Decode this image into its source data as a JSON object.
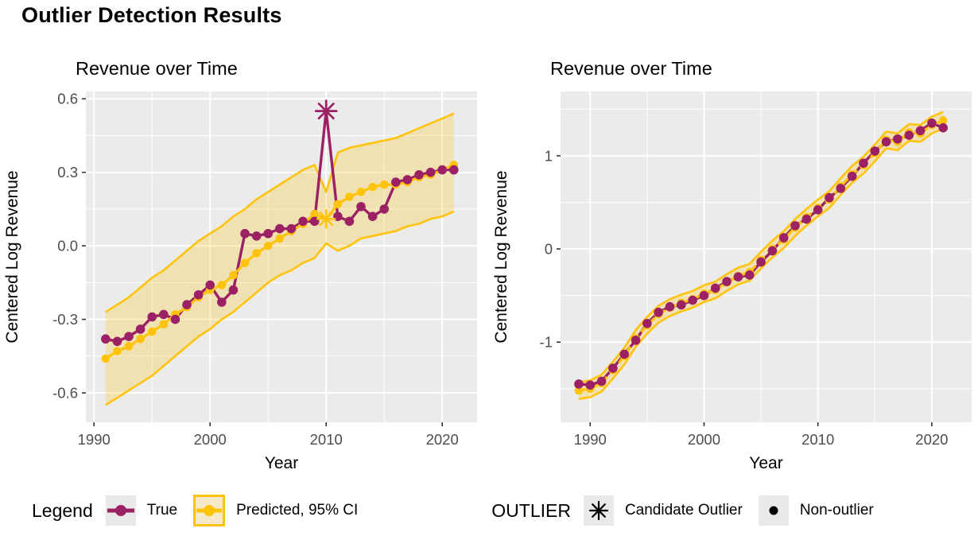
{
  "page": {
    "title": "Outlier Detection Results"
  },
  "colors": {
    "true_series": "#9c2064",
    "predicted_series": "#ffc30b",
    "ci_fill": "rgba(255,195,11,0.25)",
    "ci_key_fill": "#f5e9c9",
    "panel_background": "#ebebeb",
    "gridline": "#ffffff",
    "tick_label": "#4d4d4d",
    "tick_mark": "#333333",
    "axis_title": "#000000",
    "outlier_marker": "#000000"
  },
  "legend": {
    "series_group": {
      "title": "Legend",
      "items": [
        {
          "label": "True",
          "marker": "line-dot",
          "color": "#9c2064"
        },
        {
          "label": "Predicted, 95% CI",
          "marker": "line-dot-ribbon",
          "color": "#ffc30b"
        }
      ]
    },
    "outlier_group": {
      "title": "OUTLIER",
      "items": [
        {
          "label": "Candidate Outlier",
          "marker": "asterisk",
          "color": "#000000"
        },
        {
          "label": "Non-outlier",
          "marker": "dot",
          "color": "#000000"
        }
      ]
    }
  },
  "chart_data": [
    {
      "type": "line",
      "title": "Revenue over Time",
      "xlabel": "Year",
      "ylabel": "Centered Log Revenue",
      "legend_position": "bottom",
      "grid": true,
      "xlim": [
        1989.3,
        2023
      ],
      "ylim": [
        -0.72,
        0.63
      ],
      "x_ticks": [
        1990,
        2000,
        2010,
        2020
      ],
      "x_tick_labels": [
        "1990",
        "2000",
        "2010",
        "2020"
      ],
      "x_minor": [
        1995,
        2005,
        2015
      ],
      "y_ticks": [
        0.6,
        0.3,
        0.0,
        -0.3,
        -0.6
      ],
      "y_tick_labels": [
        "0.6",
        "0.3",
        "0.0",
        "-0.3",
        "-0.6"
      ],
      "y_minor": [
        0.45,
        0.15,
        -0.15,
        -0.45
      ],
      "x": [
        1991,
        1992,
        1993,
        1994,
        1995,
        1996,
        1997,
        1998,
        1999,
        2000,
        2001,
        2002,
        2003,
        2004,
        2005,
        2006,
        2007,
        2008,
        2009,
        2010,
        2011,
        2012,
        2013,
        2014,
        2015,
        2016,
        2017,
        2018,
        2019,
        2020,
        2021
      ],
      "series": [
        {
          "name": "True",
          "values": [
            -0.38,
            -0.39,
            -0.37,
            -0.34,
            -0.29,
            -0.28,
            -0.3,
            -0.24,
            -0.2,
            -0.16,
            -0.23,
            -0.18,
            0.05,
            0.04,
            0.05,
            0.07,
            0.07,
            0.1,
            0.1,
            0.55,
            0.12,
            0.1,
            0.16,
            0.12,
            0.15,
            0.26,
            0.27,
            0.29,
            0.3,
            0.31,
            0.31
          ]
        },
        {
          "name": "Predicted, 95% CI",
          "values": [
            -0.46,
            -0.43,
            -0.41,
            -0.38,
            -0.35,
            -0.32,
            -0.28,
            -0.25,
            -0.21,
            -0.18,
            -0.16,
            -0.12,
            -0.07,
            -0.03,
            0.0,
            0.03,
            0.06,
            0.09,
            0.13,
            0.11,
            0.17,
            0.2,
            0.22,
            0.24,
            0.25,
            0.25,
            0.26,
            0.28,
            0.29,
            0.31,
            0.33
          ]
        },
        {
          "name": "CI upper",
          "values": [
            -0.27,
            -0.24,
            -0.21,
            -0.17,
            -0.13,
            -0.1,
            -0.06,
            -0.02,
            0.02,
            0.05,
            0.08,
            0.12,
            0.15,
            0.19,
            0.22,
            0.25,
            0.28,
            0.31,
            0.33,
            0.22,
            0.38,
            0.4,
            0.41,
            0.42,
            0.43,
            0.44,
            0.46,
            0.48,
            0.5,
            0.52,
            0.54
          ]
        },
        {
          "name": "CI lower",
          "values": [
            -0.65,
            -0.62,
            -0.59,
            -0.56,
            -0.53,
            -0.49,
            -0.45,
            -0.41,
            -0.37,
            -0.34,
            -0.3,
            -0.27,
            -0.23,
            -0.19,
            -0.15,
            -0.12,
            -0.1,
            -0.07,
            -0.05,
            0.01,
            -0.02,
            0.0,
            0.03,
            0.04,
            0.05,
            0.06,
            0.08,
            0.09,
            0.11,
            0.12,
            0.14
          ]
        }
      ],
      "outlier_year": 2010,
      "outlier_true_value": 0.55,
      "outlier_predicted_value": 0.11,
      "predicted_line_dashed": false
    },
    {
      "type": "line",
      "title": "Revenue over Time",
      "xlabel": "Year",
      "ylabel": "Centered Log Revenue",
      "legend_position": "bottom",
      "grid": true,
      "xlim": [
        1987.4,
        2023.5
      ],
      "ylim": [
        -1.86,
        1.69
      ],
      "x_ticks": [
        1990,
        2000,
        2010,
        2020
      ],
      "x_tick_labels": [
        "1990",
        "2000",
        "2010",
        "2020"
      ],
      "x_minor": [
        1995,
        2005,
        2015
      ],
      "y_ticks": [
        1,
        0,
        -1
      ],
      "y_tick_labels": [
        "1",
        "0",
        "-1"
      ],
      "y_minor": [
        1.5,
        0.5,
        -0.5,
        -1.5
      ],
      "x": [
        1989,
        1990,
        1991,
        1992,
        1993,
        1994,
        1995,
        1996,
        1997,
        1998,
        1999,
        2000,
        2001,
        2002,
        2003,
        2004,
        2005,
        2006,
        2007,
        2008,
        2009,
        2010,
        2011,
        2012,
        2013,
        2014,
        2015,
        2016,
        2017,
        2018,
        2019,
        2020,
        2021
      ],
      "series": [
        {
          "name": "True",
          "values": [
            -1.45,
            -1.46,
            -1.42,
            -1.28,
            -1.13,
            -0.98,
            -0.8,
            -0.68,
            -0.62,
            -0.6,
            -0.55,
            -0.5,
            -0.42,
            -0.35,
            -0.3,
            -0.28,
            -0.14,
            -0.02,
            0.12,
            0.25,
            0.32,
            0.42,
            0.55,
            0.65,
            0.78,
            0.92,
            1.05,
            1.15,
            1.18,
            1.22,
            1.27,
            1.35,
            1.3
          ]
        },
        {
          "name": "Predicted, 95% CI",
          "values": [
            -1.52,
            -1.5,
            -1.44,
            -1.3,
            -1.15,
            -0.96,
            -0.82,
            -0.7,
            -0.63,
            -0.58,
            -0.54,
            -0.48,
            -0.44,
            -0.36,
            -0.29,
            -0.25,
            -0.12,
            0.0,
            0.1,
            0.23,
            0.34,
            0.44,
            0.53,
            0.67,
            0.8,
            0.9,
            1.03,
            1.17,
            1.15,
            1.25,
            1.24,
            1.33,
            1.38
          ]
        },
        {
          "name": "CI upper",
          "values": [
            -1.43,
            -1.41,
            -1.35,
            -1.21,
            -1.06,
            -0.87,
            -0.73,
            -0.61,
            -0.54,
            -0.49,
            -0.45,
            -0.39,
            -0.35,
            -0.27,
            -0.2,
            -0.16,
            -0.03,
            0.09,
            0.19,
            0.32,
            0.43,
            0.53,
            0.62,
            0.76,
            0.89,
            0.99,
            1.12,
            1.26,
            1.24,
            1.34,
            1.33,
            1.42,
            1.47
          ]
        },
        {
          "name": "CI lower",
          "values": [
            -1.61,
            -1.59,
            -1.53,
            -1.39,
            -1.24,
            -1.05,
            -0.91,
            -0.79,
            -0.72,
            -0.67,
            -0.63,
            -0.57,
            -0.53,
            -0.45,
            -0.38,
            -0.34,
            -0.21,
            -0.09,
            0.01,
            0.14,
            0.25,
            0.35,
            0.44,
            0.58,
            0.71,
            0.81,
            0.94,
            1.08,
            1.06,
            1.16,
            1.15,
            1.24,
            1.29
          ]
        }
      ],
      "outlier_year": null,
      "predicted_line_dashed": true
    }
  ]
}
